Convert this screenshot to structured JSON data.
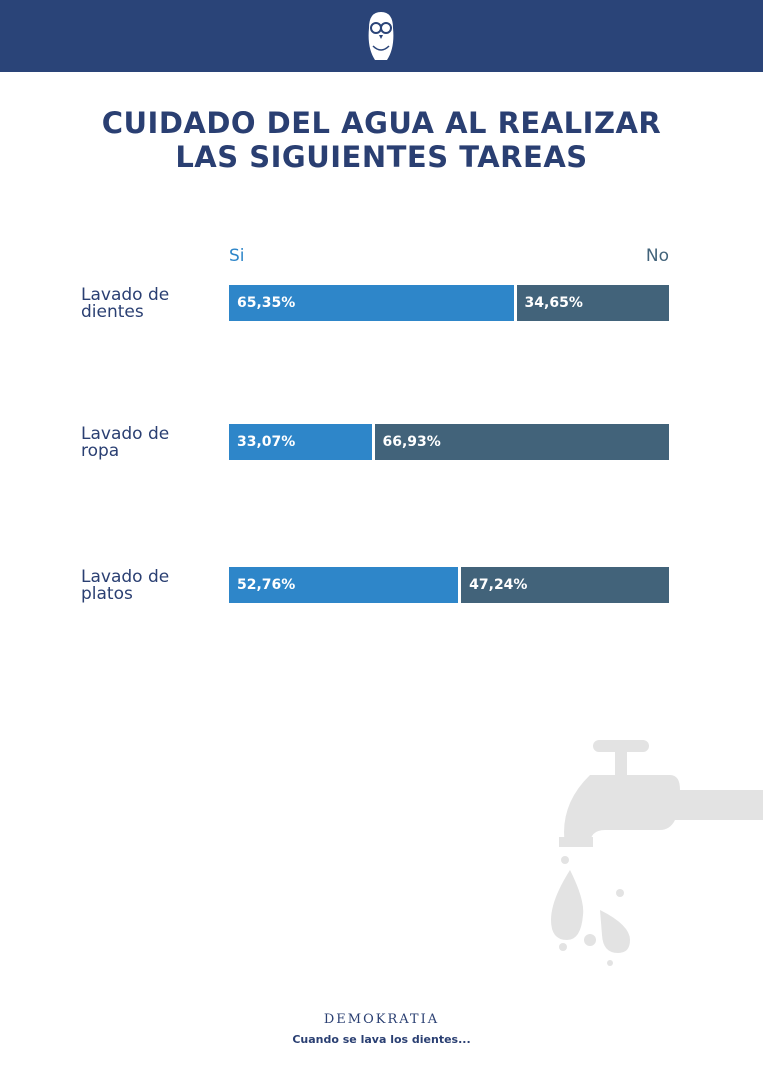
{
  "chart_data": {
    "type": "stacked-bar-100",
    "title": "CUIDADO DEL AGUA AL REALIZAR LAS SIGUIENTES TAREAS",
    "categories": [
      "Lavado de dientes",
      "Lavado de ropa",
      "Lavado de platos"
    ],
    "series": [
      {
        "name": "Si",
        "color": "#2e86c9",
        "values": [
          65.35,
          33.07,
          52.76
        ],
        "value_labels": [
          "65,35%",
          "33,07%",
          "52,76%"
        ]
      },
      {
        "name": "No",
        "color": "#42637a",
        "values": [
          34.65,
          66.93,
          47.24
        ],
        "value_labels": [
          "34,65%",
          "66,93%",
          "47,24%"
        ]
      }
    ],
    "xlim": [
      0,
      100
    ]
  },
  "footer": {
    "brand": "DEMOKRATIA",
    "caption": "Cuando se lava los dientes..."
  }
}
